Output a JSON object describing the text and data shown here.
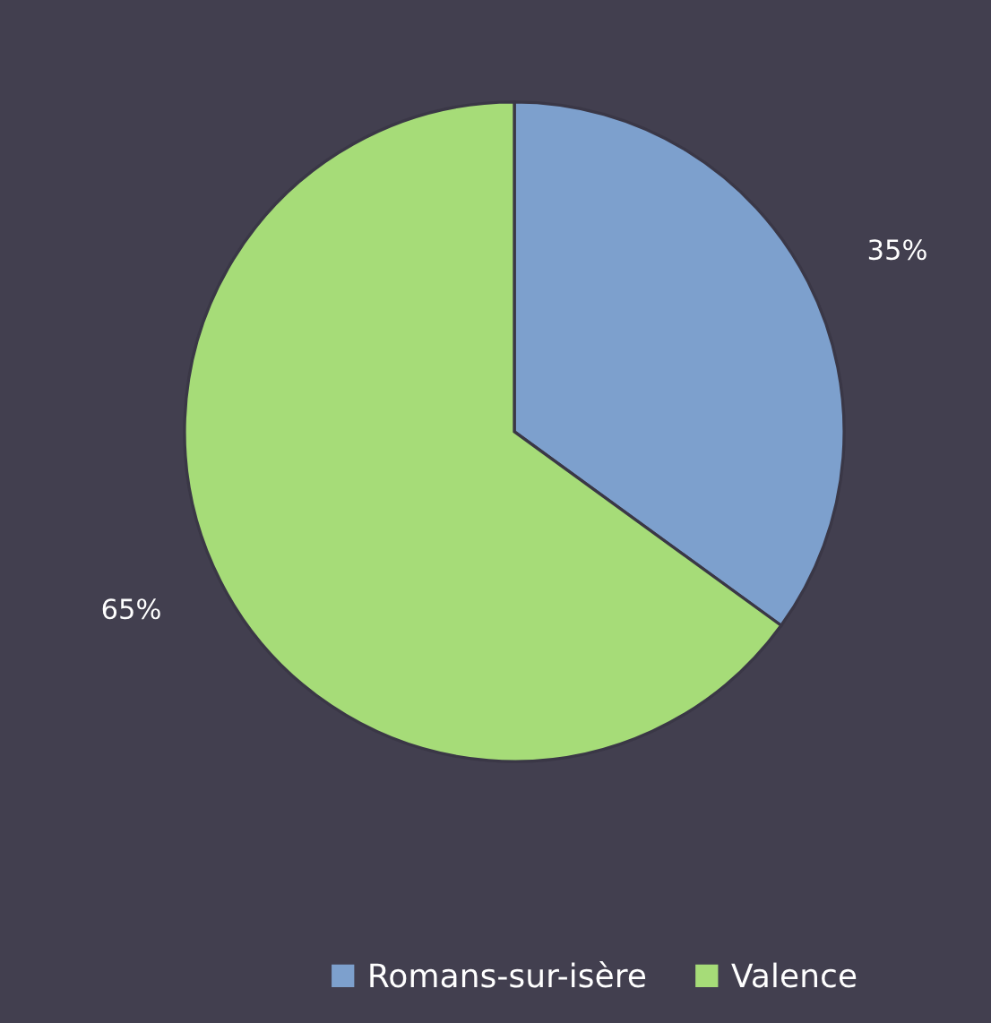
{
  "chart_data": {
    "type": "pie",
    "categories": [
      "Romans-sur-isère",
      "Valence"
    ],
    "values": [
      35,
      65
    ],
    "colors": [
      "#7da0cd",
      "#a6dc78"
    ],
    "value_labels": [
      "35%",
      "65%"
    ],
    "legend": "bottom"
  }
}
